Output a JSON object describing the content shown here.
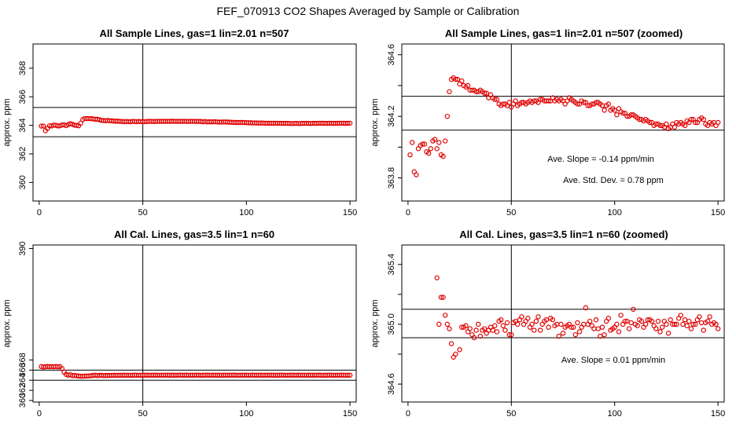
{
  "figure": {
    "title": "FEF_070913  CO2 Shapes Averaged by Sample or Calibration"
  },
  "colors": {
    "points": "#e00000",
    "lines": "#000000"
  },
  "chart_data": [
    {
      "type": "scatter",
      "title": "All Sample Lines, gas=1 lin=2.01 n=507",
      "xlabel": "",
      "ylabel": "approx. ppm",
      "xlim": [
        -3,
        153
      ],
      "ylim": [
        358.7,
        369.7
      ],
      "xticks": [
        0,
        50,
        100,
        150
      ],
      "yticks": [
        360,
        362,
        364,
        366,
        368
      ],
      "hlines": [
        365.25,
        363.2
      ],
      "vline": 50,
      "annotations": [],
      "x": [
        1,
        2,
        3,
        4,
        5,
        6,
        7,
        8,
        9,
        10,
        11,
        12,
        13,
        14,
        15,
        16,
        17,
        18,
        19,
        20,
        21,
        22,
        23,
        24,
        25,
        26,
        27,
        28,
        29,
        30,
        31,
        32,
        33,
        34,
        35,
        36,
        37,
        38,
        39,
        40,
        41,
        42,
        43,
        44,
        45,
        46,
        47,
        48,
        49,
        50,
        51,
        52,
        53,
        54,
        55,
        56,
        57,
        58,
        59,
        60,
        61,
        62,
        63,
        64,
        65,
        66,
        67,
        68,
        69,
        70,
        71,
        72,
        73,
        74,
        75,
        76,
        77,
        78,
        79,
        80,
        81,
        82,
        83,
        84,
        85,
        86,
        87,
        88,
        89,
        90,
        91,
        92,
        93,
        94,
        95,
        96,
        97,
        98,
        99,
        100,
        101,
        102,
        103,
        104,
        105,
        106,
        107,
        108,
        109,
        110,
        111,
        112,
        113,
        114,
        115,
        116,
        117,
        118,
        119,
        120,
        121,
        122,
        123,
        124,
        125,
        126,
        127,
        128,
        129,
        130,
        131,
        132,
        133,
        134,
        135,
        136,
        137,
        138,
        139,
        140,
        141,
        142,
        143,
        144,
        145,
        146,
        147,
        148,
        149,
        150
      ],
      "y": [
        363.95,
        363.95,
        363.62,
        363.78,
        363.97,
        363.96,
        364.02,
        364.0,
        363.96,
        363.97,
        364.03,
        364.04,
        363.98,
        364.05,
        364.12,
        364.08,
        364.01,
        364.0,
        363.97,
        364.15,
        364.4,
        364.48,
        364.47,
        364.48,
        364.47,
        364.45,
        364.43,
        364.43,
        364.4,
        364.34,
        364.34,
        364.32,
        364.35,
        364.32,
        364.32,
        364.3,
        364.29,
        364.29,
        364.28,
        364.27,
        364.26,
        364.27,
        364.26,
        364.25,
        364.28,
        364.27,
        364.26,
        364.27,
        364.26,
        364.27,
        364.26,
        364.27,
        364.28,
        364.28,
        364.27,
        364.27,
        364.28,
        364.28,
        364.28,
        364.28,
        364.28,
        364.28,
        364.28,
        364.29,
        364.28,
        364.28,
        364.28,
        364.28,
        364.28,
        364.28,
        364.28,
        364.27,
        364.28,
        364.28,
        364.28,
        364.27,
        364.28,
        364.27,
        364.25,
        364.27,
        364.24,
        364.25,
        364.24,
        364.25,
        364.25,
        364.24,
        364.23,
        364.23,
        364.24,
        364.24,
        364.23,
        364.22,
        364.21,
        364.21,
        364.2,
        364.2,
        364.2,
        364.2,
        364.2,
        364.19,
        364.18,
        364.18,
        364.17,
        364.17,
        364.17,
        364.16,
        364.16,
        364.16,
        364.15,
        364.15,
        364.15,
        364.15,
        364.15,
        364.15,
        364.15,
        364.14,
        364.14,
        364.14,
        364.14,
        364.14,
        364.13,
        364.13,
        364.13,
        364.14,
        364.13,
        364.13,
        364.14,
        364.14,
        364.14,
        364.14,
        364.13,
        364.14,
        364.14,
        364.14,
        364.15,
        364.15,
        364.15,
        364.14,
        364.14,
        364.15,
        364.15,
        364.14,
        364.14,
        364.15,
        364.15,
        364.15,
        364.15,
        364.14,
        364.15,
        364.15
      ]
    },
    {
      "type": "scatter",
      "title": "All Sample Lines, gas=1 lin=2.01 n=507 (zoomed)",
      "xlabel": "",
      "ylabel": "approx. ppm",
      "xlim": [
        -3,
        153
      ],
      "ylim": [
        363.65,
        364.67
      ],
      "xticks": [
        0,
        50,
        100,
        150
      ],
      "yticks": [
        363.8,
        364.0,
        364.2,
        364.4,
        364.6
      ],
      "ytick_labels": [
        "363.8",
        "",
        "364.2",
        "",
        "364.6"
      ],
      "hlines": [
        364.33,
        364.11
      ],
      "vline": 50,
      "annotations": [
        "Ave. Slope =  -0.14  ppm/min",
        "Ave. Std. Dev. =  0.78  ppm"
      ],
      "x": [
        1,
        2,
        3,
        4,
        5,
        6,
        7,
        8,
        9,
        10,
        11,
        12,
        13,
        14,
        15,
        16,
        17,
        18,
        19,
        20,
        21,
        22,
        23,
        24,
        25,
        26,
        27,
        28,
        29,
        30,
        31,
        32,
        33,
        34,
        35,
        36,
        37,
        38,
        39,
        40,
        41,
        42,
        43,
        44,
        45,
        46,
        47,
        48,
        49,
        50,
        51,
        52,
        53,
        54,
        55,
        56,
        57,
        58,
        59,
        60,
        61,
        62,
        63,
        64,
        65,
        66,
        67,
        68,
        69,
        70,
        71,
        72,
        73,
        74,
        75,
        76,
        77,
        78,
        79,
        80,
        81,
        82,
        83,
        84,
        85,
        86,
        87,
        88,
        89,
        90,
        91,
        92,
        93,
        94,
        95,
        96,
        97,
        98,
        99,
        100,
        101,
        102,
        103,
        104,
        105,
        106,
        107,
        108,
        109,
        110,
        111,
        112,
        113,
        114,
        115,
        116,
        117,
        118,
        119,
        120,
        121,
        122,
        123,
        124,
        125,
        126,
        127,
        128,
        129,
        130,
        131,
        132,
        133,
        134,
        135,
        136,
        137,
        138,
        139,
        140,
        141,
        142,
        143,
        144,
        145,
        146,
        147,
        148,
        149,
        150
      ],
      "y": [
        363.95,
        364.03,
        363.84,
        363.82,
        363.99,
        364.01,
        364.02,
        364.02,
        363.97,
        363.96,
        363.99,
        364.04,
        364.05,
        363.99,
        364.03,
        363.95,
        363.94,
        364.04,
        364.2,
        364.36,
        364.44,
        364.45,
        364.44,
        364.44,
        364.41,
        364.43,
        364.4,
        364.39,
        364.4,
        364.37,
        364.37,
        364.37,
        364.36,
        364.36,
        364.37,
        364.36,
        364.35,
        364.35,
        364.32,
        364.34,
        364.32,
        364.31,
        364.31,
        364.28,
        364.27,
        364.28,
        364.28,
        364.27,
        364.29,
        364.26,
        364.28,
        364.3,
        364.27,
        364.28,
        364.29,
        364.29,
        364.28,
        364.29,
        364.3,
        364.29,
        364.3,
        364.3,
        364.29,
        364.31,
        364.31,
        364.3,
        364.3,
        364.3,
        364.3,
        364.32,
        364.3,
        364.31,
        364.3,
        364.31,
        364.3,
        364.28,
        364.3,
        364.32,
        364.31,
        364.3,
        364.29,
        364.28,
        364.28,
        364.3,
        364.29,
        364.29,
        364.27,
        364.27,
        364.28,
        364.28,
        364.29,
        364.29,
        364.28,
        364.27,
        364.24,
        364.27,
        364.28,
        364.24,
        364.25,
        364.24,
        364.21,
        364.25,
        364.23,
        364.22,
        364.22,
        364.2,
        364.2,
        364.21,
        364.21,
        364.2,
        364.19,
        364.18,
        364.18,
        364.17,
        364.18,
        364.17,
        364.16,
        364.16,
        364.14,
        364.15,
        364.15,
        364.14,
        364.14,
        364.13,
        364.15,
        364.12,
        364.13,
        364.15,
        364.13,
        364.16,
        364.15,
        364.16,
        364.15,
        364.14,
        364.17,
        364.16,
        364.18,
        364.18,
        364.16,
        364.16,
        364.18,
        364.19,
        364.18,
        364.15,
        364.14,
        364.16,
        364.15,
        364.16,
        364.14,
        364.16
      ]
    },
    {
      "type": "scatter",
      "title": "All Cal. Lines, gas=3.5 lin=1 n=60",
      "xlabel": "",
      "ylabel": "approx. ppm",
      "xlim": [
        -3,
        153
      ],
      "ylim": [
        359.7,
        390.7
      ],
      "xticks": [
        0,
        50,
        100,
        150
      ],
      "yticks": [
        360,
        362,
        364,
        366,
        368,
        390
      ],
      "hlines": [
        366.0,
        364.0
      ],
      "vline": 50,
      "annotations": [],
      "x": [
        1,
        2,
        3,
        4,
        5,
        6,
        7,
        8,
        9,
        10,
        11,
        12,
        13,
        14,
        15,
        16,
        17,
        18,
        19,
        20,
        21,
        22,
        23,
        24,
        25,
        26,
        27,
        28,
        29,
        30,
        31,
        32,
        33,
        34,
        35,
        36,
        37,
        38,
        39,
        40,
        41,
        42,
        43,
        44,
        45,
        46,
        47,
        48,
        49,
        50,
        51,
        52,
        53,
        54,
        55,
        56,
        57,
        58,
        59,
        60,
        61,
        62,
        63,
        64,
        65,
        66,
        67,
        68,
        69,
        70,
        71,
        72,
        73,
        74,
        75,
        76,
        77,
        78,
        79,
        80,
        81,
        82,
        83,
        84,
        85,
        86,
        87,
        88,
        89,
        90,
        91,
        92,
        93,
        94,
        95,
        96,
        97,
        98,
        99,
        100,
        101,
        102,
        103,
        104,
        105,
        106,
        107,
        108,
        109,
        110,
        111,
        112,
        113,
        114,
        115,
        116,
        117,
        118,
        119,
        120,
        121,
        122,
        123,
        124,
        125,
        126,
        127,
        128,
        129,
        130,
        131,
        132,
        133,
        134,
        135,
        136,
        137,
        138,
        139,
        140,
        141,
        142,
        143,
        144,
        145,
        146,
        147,
        148,
        149,
        150
      ],
      "y": [
        366.7,
        366.6,
        366.68,
        366.72,
        366.68,
        366.7,
        366.65,
        366.72,
        366.65,
        366.7,
        366.3,
        365.6,
        365.15,
        365.0,
        365.1,
        364.9,
        364.95,
        364.9,
        364.82,
        364.78,
        364.8,
        364.82,
        364.85,
        364.85,
        364.9,
        364.95,
        365.0,
        364.92,
        364.95,
        364.98,
        364.92,
        364.95,
        364.93,
        364.95,
        364.95,
        365.0,
        364.95,
        364.97,
        365.0,
        364.97,
        365.02,
        364.98,
        365.0,
        364.98,
        364.98,
        365.02,
        365.0,
        365.0,
        364.98,
        365.02,
        365.0,
        365.02,
        364.98,
        365.0,
        365.0,
        365.02,
        365.0,
        364.98,
        365.0,
        365.0,
        365.0,
        365.02,
        364.98,
        365.02,
        365.0,
        364.98,
        365.0,
        365.02,
        365.0,
        365.0,
        365.02,
        364.98,
        365.0,
        365.0,
        365.0,
        365.02,
        365.0,
        364.98,
        365.0,
        365.0,
        365.02,
        365.0,
        364.98,
        365.02,
        365.0,
        365.0,
        365.0,
        364.98,
        365.02,
        365.0,
        365.0,
        365.0,
        365.0,
        365.02,
        365.0,
        364.98,
        365.0,
        365.0,
        365.02,
        365.0,
        364.98,
        365.0,
        365.02,
        365.0,
        365.0,
        365.0,
        365.02,
        364.98,
        365.0,
        365.0,
        365.0,
        365.02,
        365.0,
        364.98,
        365.0,
        365.0,
        365.02,
        365.0,
        364.98,
        365.0,
        365.0,
        365.02,
        365.0,
        364.98,
        365.02,
        365.0,
        365.0,
        365.0,
        364.98,
        365.02,
        365.0,
        365.0,
        365.0,
        365.0,
        365.02,
        365.0,
        364.98,
        365.0,
        365.0,
        365.02,
        365.0,
        364.98,
        365.0,
        365.0,
        365.0,
        365.02,
        365.0,
        364.98,
        365.0,
        365.0
      ]
    },
    {
      "type": "scatter",
      "title": "All Cal. Lines, gas=3.5 lin=1 n=60 (zoomed)",
      "xlabel": "",
      "ylabel": "approx. ppm",
      "xlim": [
        -3,
        153
      ],
      "ylim": [
        364.48,
        365.53
      ],
      "xticks": [
        0,
        50,
        100,
        150
      ],
      "yticks": [
        364.6,
        364.8,
        365.0,
        365.2,
        365.4
      ],
      "ytick_labels": [
        "364.6",
        "",
        "365.0",
        "",
        "365.4"
      ],
      "hlines": [
        365.1,
        364.91
      ],
      "vline": 50,
      "annotations": [
        "Ave. Slope =  0.01  ppm/min"
      ],
      "x": [
        14,
        15,
        16,
        17,
        18,
        19,
        20,
        21,
        22,
        23,
        25,
        26,
        27,
        28,
        29,
        30,
        31,
        32,
        33,
        34,
        35,
        36,
        37,
        38,
        39,
        40,
        41,
        42,
        43,
        44,
        45,
        46,
        47,
        48,
        49,
        50,
        51,
        52,
        53,
        54,
        55,
        56,
        57,
        58,
        59,
        60,
        61,
        62,
        63,
        64,
        65,
        66,
        67,
        68,
        69,
        70,
        71,
        72,
        73,
        74,
        75,
        76,
        77,
        78,
        79,
        80,
        81,
        82,
        83,
        84,
        85,
        86,
        87,
        88,
        89,
        90,
        91,
        92,
        93,
        94,
        95,
        96,
        97,
        98,
        99,
        100,
        101,
        102,
        103,
        104,
        105,
        106,
        107,
        108,
        109,
        110,
        111,
        112,
        113,
        114,
        115,
        116,
        117,
        118,
        119,
        120,
        121,
        122,
        123,
        124,
        125,
        126,
        127,
        128,
        129,
        130,
        131,
        132,
        133,
        134,
        135,
        136,
        137,
        138,
        139,
        140,
        141,
        142,
        143,
        144,
        145,
        146,
        147,
        148,
        149,
        150
      ],
      "y": [
        365.31,
        365.0,
        365.18,
        365.18,
        365.06,
        365.0,
        364.97,
        364.87,
        364.78,
        364.8,
        364.83,
        364.98,
        364.98,
        364.99,
        364.95,
        364.97,
        364.93,
        364.91,
        364.96,
        365.0,
        364.92,
        364.96,
        364.97,
        364.94,
        364.96,
        364.98,
        364.96,
        364.99,
        364.95,
        365.02,
        365.03,
        364.99,
        364.96,
        365.01,
        364.93,
        364.93,
        365.01,
        365.02,
        365.0,
        365.03,
        365.05,
        365.0,
        365.02,
        365.04,
        364.98,
        365.0,
        364.96,
        365.02,
        365.05,
        364.96,
        365.0,
        365.02,
        365.03,
        364.98,
        365.04,
        365.03,
        364.99,
        365.0,
        364.92,
        365.0,
        364.94,
        364.98,
        364.99,
        365.0,
        364.98,
        364.98,
        364.93,
        365.01,
        364.95,
        364.98,
        365.0,
        365.11,
        365.0,
        365.02,
        364.99,
        364.97,
        365.03,
        364.97,
        364.92,
        364.98,
        364.93,
        365.02,
        365.04,
        364.96,
        364.97,
        364.98,
        365.0,
        364.95,
        365.06,
        365.0,
        365.02,
        365.02,
        364.97,
        365.01,
        365.1,
        365.0,
        364.99,
        365.03,
        365.02,
        364.98,
        365.0,
        365.03,
        365.03,
        365.02,
        364.99,
        364.97,
        365.02,
        364.95,
        364.98,
        365.02,
        365.0,
        364.94,
        365.03,
        365.0,
        365.0,
        365.0,
        365.04,
        365.06,
        365.0,
        365.03,
        364.99,
        365.02,
        364.97,
        365.0,
        365.0,
        365.03,
        365.05,
        365.01,
        364.96,
        365.01,
        365.02,
        365.05,
        365.0,
        365.01,
        365.0,
        364.97
      ]
    }
  ]
}
